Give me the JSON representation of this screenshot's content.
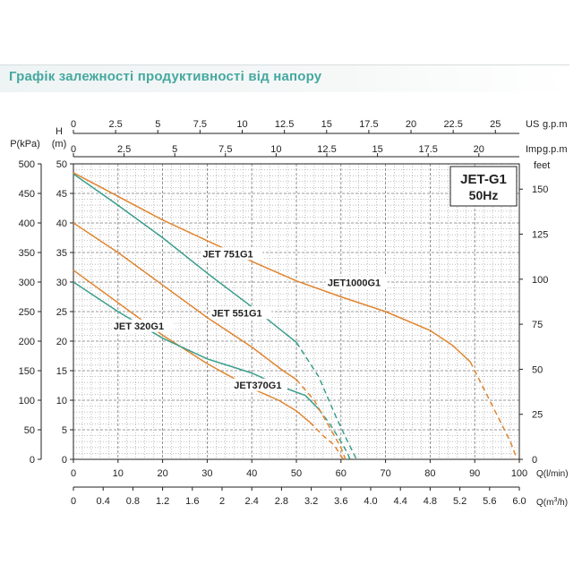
{
  "page": {
    "title": "Графік залежності продуктивності від напору"
  },
  "colors": {
    "teal": "#3a9e8c",
    "orange": "#e0852f",
    "grid": "#9a9a9a",
    "axis": "#222222"
  },
  "chart_data": {
    "type": "line",
    "title": "",
    "model_box": {
      "line1": "JET-G1",
      "line2": "50Hz"
    },
    "legend_placement": "top-right",
    "grid": true,
    "x_axes": {
      "primary": {
        "unit_label": "Q(l/min)",
        "range": [
          0,
          100
        ],
        "ticks": [
          "0",
          "10",
          "20",
          "30",
          "40",
          "50",
          "60",
          "70",
          "80",
          "90",
          "100"
        ]
      },
      "cubic_meters": {
        "unit_label": "Q(m³/h)",
        "unit_main": "Q(m",
        "unit_sup": "3",
        "unit_end": "/h)",
        "range": [
          0,
          6.0
        ],
        "ticks": [
          "0",
          "0.4",
          "0.8",
          "1.2",
          "1.6",
          "2",
          "2.4",
          "2.8",
          "3.2",
          "3.6",
          "4.0",
          "4.4",
          "4.8",
          "5.2",
          "5.6",
          "6.0"
        ]
      },
      "us_gpm": {
        "unit_label": "US g.p.m",
        "unit_main": "US",
        "unit_end": "g.p.m",
        "range": [
          0,
          26.417
        ],
        "ticks": [
          "0",
          "2.5",
          "5",
          "7.5",
          "10",
          "12.5",
          "15",
          "17.5",
          "20",
          "22.5",
          "25"
        ]
      },
      "imp_gpm": {
        "unit_label": "Imp g.p.m",
        "unit_main": "Imp",
        "unit_end": "g.p.m",
        "range": [
          0,
          21.997
        ],
        "ticks": [
          "0",
          "2.5",
          "5",
          "7.5",
          "10",
          "12.5",
          "15",
          "17.5",
          "20"
        ]
      }
    },
    "y_axes": {
      "head_m": {
        "unit_label": "H",
        "unit_sub": "(m)",
        "range": [
          0,
          50
        ],
        "ticks": [
          "0",
          "5",
          "10",
          "15",
          "20",
          "25",
          "30",
          "35",
          "40",
          "45",
          "50"
        ]
      },
      "pressure_kpa": {
        "unit_label": "P(kPa)",
        "range": [
          0,
          500
        ],
        "ticks": [
          "0",
          "50",
          "100",
          "150",
          "200",
          "250",
          "300",
          "350",
          "400",
          "450",
          "500"
        ]
      },
      "feet": {
        "unit_label": "feet",
        "range": [
          0,
          164.04
        ],
        "ticks": [
          "0",
          "25",
          "50",
          "75",
          "100",
          "125",
          "150"
        ]
      }
    },
    "series": [
      {
        "name": "JET 320G1",
        "color": "orange",
        "solid": [
          [
            0,
            32
          ],
          [
            10,
            26.5
          ],
          [
            20,
            21
          ],
          [
            30,
            16.2
          ],
          [
            40,
            12
          ],
          [
            46,
            10
          ],
          [
            50,
            8.2
          ],
          [
            53,
            6.3
          ]
        ],
        "dashed": [
          [
            53,
            6.3
          ],
          [
            56,
            4
          ],
          [
            58.5,
            2.4
          ],
          [
            60.5,
            0
          ]
        ]
      },
      {
        "name": "JET370G1",
        "color": "teal",
        "solid": [
          [
            0,
            30
          ],
          [
            10,
            25
          ],
          [
            20,
            20.5
          ],
          [
            30,
            17
          ],
          [
            40,
            14.6
          ],
          [
            47,
            12.2
          ],
          [
            52,
            10.8
          ],
          [
            55,
            8.5
          ]
        ],
        "dashed": [
          [
            55,
            8.5
          ],
          [
            57.5,
            6
          ],
          [
            60,
            3
          ],
          [
            61.5,
            1
          ],
          [
            62,
            0
          ]
        ]
      },
      {
        "name": "JET 551G1",
        "color": "orange",
        "solid": [
          [
            0,
            40
          ],
          [
            10,
            35
          ],
          [
            20,
            29.5
          ],
          [
            30,
            24
          ],
          [
            40,
            19
          ],
          [
            47,
            15
          ],
          [
            50,
            13.5
          ]
        ],
        "dashed": [
          [
            50,
            13.5
          ],
          [
            54,
            10
          ],
          [
            57,
            6
          ],
          [
            60,
            2
          ],
          [
            61,
            0
          ]
        ]
      },
      {
        "name": "JET 751G1",
        "color": "teal",
        "solid": [
          [
            0,
            48.3
          ],
          [
            10,
            43
          ],
          [
            20,
            37.5
          ],
          [
            30,
            31.5
          ],
          [
            40,
            25.8
          ],
          [
            50,
            19.8
          ]
        ],
        "dashed": [
          [
            50,
            19.8
          ],
          [
            55,
            14
          ],
          [
            59,
            7
          ],
          [
            61.5,
            3
          ],
          [
            63.5,
            0
          ]
        ]
      },
      {
        "name": "JET1000G1",
        "color": "orange",
        "solid": [
          [
            0,
            48.5
          ],
          [
            10,
            44.5
          ],
          [
            20,
            40.5
          ],
          [
            30,
            37
          ],
          [
            40,
            33.5
          ],
          [
            50,
            30.2
          ],
          [
            60,
            27.5
          ],
          [
            70,
            25
          ],
          [
            80,
            21.8
          ],
          [
            85,
            19.3
          ],
          [
            89,
            16.5
          ]
        ],
        "dashed": [
          [
            89,
            16.5
          ],
          [
            93,
            10.5
          ],
          [
            96,
            6
          ],
          [
            98,
            3
          ],
          [
            99.5,
            0
          ]
        ]
      }
    ],
    "series_labels": [
      {
        "series": "JET 320G1",
        "x": 9,
        "y": 22
      },
      {
        "series": "JET370G1",
        "x": 36,
        "y": 12
      },
      {
        "series": "JET 551G1",
        "x": 31,
        "y": 24.2
      },
      {
        "series": "JET 751G1",
        "x": 29,
        "y": 34.2
      },
      {
        "series": "JET1000G1",
        "x": 57,
        "y": 29.3
      }
    ]
  }
}
